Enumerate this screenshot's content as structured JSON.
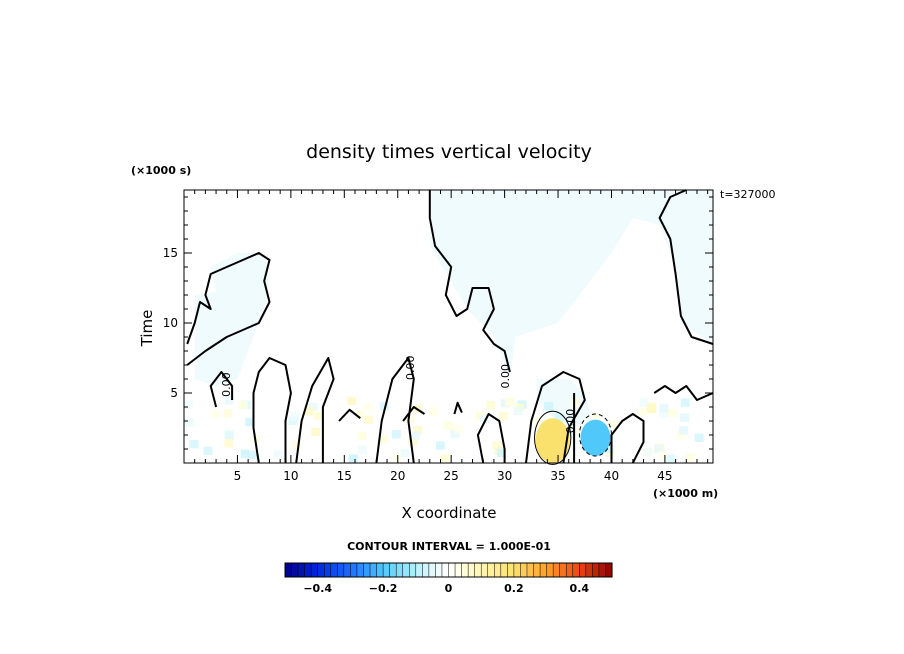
{
  "chart_data": {
    "type": "heatmap",
    "title": "density times vertical velocity",
    "xlabel": "X coordinate",
    "ylabel": "Time",
    "x_unit": "(×1000 m)",
    "y_unit": "(×1000 s)",
    "time_label": "t=327000",
    "xlim": [
      0,
      49.5
    ],
    "ylim": [
      0,
      19.5
    ],
    "x_ticks": [
      5,
      10,
      15,
      20,
      25,
      30,
      35,
      40,
      45
    ],
    "y_ticks": [
      5,
      10,
      15
    ],
    "contour_interval_text": "CONTOUR INTERVAL = 1.000E-01",
    "contour_interval": 0.1,
    "contour_labels": [
      {
        "x": 4.3,
        "y": 5.6,
        "text": "0.00"
      },
      {
        "x": 21.5,
        "y": 6.8,
        "text": "0.00"
      },
      {
        "x": 30.4,
        "y": 6.2,
        "text": "0.00"
      },
      {
        "x": 36.5,
        "y": 3.0,
        "text": "0.00"
      }
    ],
    "blobs": [
      {
        "cx": 34.5,
        "cy": 1.6,
        "rx": 1.6,
        "ry": 1.6,
        "value": 0.2
      },
      {
        "cx": 38.5,
        "cy": 1.8,
        "rx": 1.4,
        "ry": 1.3,
        "value": -0.2
      }
    ],
    "colorbar": {
      "min": -0.5,
      "max": 0.5,
      "ticks": [
        "−0.4",
        "−0.2",
        "0",
        "0.2",
        "0.4"
      ],
      "tick_values": [
        -0.4,
        -0.2,
        0,
        0.2,
        0.4
      ]
    }
  }
}
